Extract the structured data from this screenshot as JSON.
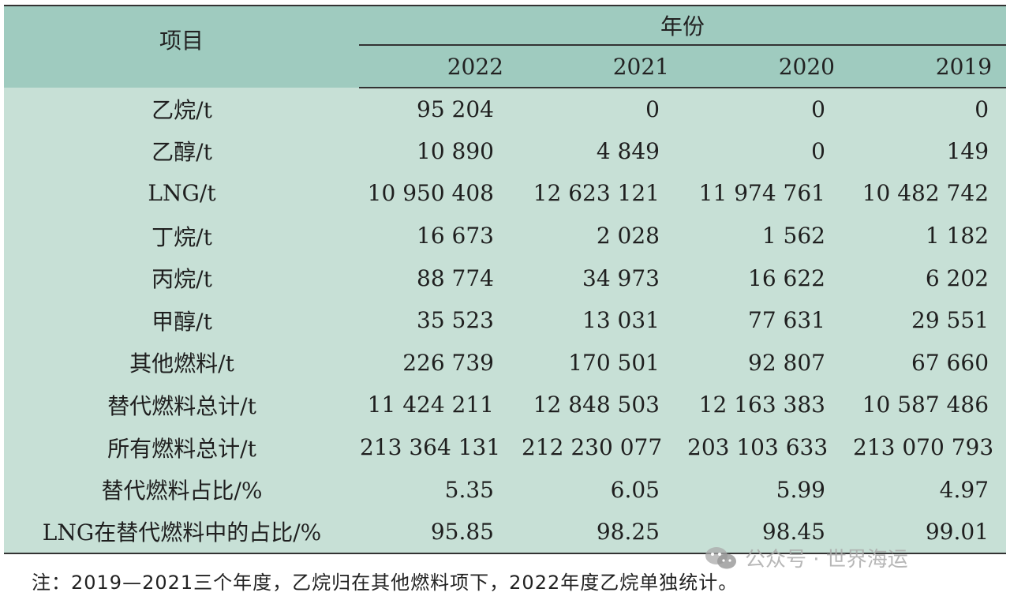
{
  "table": {
    "item_header": "项目",
    "year_group_header": "年份",
    "years": [
      "2022",
      "2021",
      "2020",
      "2019"
    ],
    "rows": [
      {
        "label": "乙烷/t",
        "values": [
          "95 204",
          "0",
          "0",
          "0"
        ]
      },
      {
        "label": "乙醇/t",
        "values": [
          "10 890",
          "4 849",
          "0",
          "149"
        ]
      },
      {
        "label": "LNG/t",
        "values": [
          "10 950 408",
          "12 623 121",
          "11 974 761",
          "10 482 742"
        ]
      },
      {
        "label": "丁烷/t",
        "values": [
          "16 673",
          "2 028",
          "1 562",
          "1 182"
        ]
      },
      {
        "label": "丙烷/t",
        "values": [
          "88 774",
          "34 973",
          "16 622",
          "6 202"
        ]
      },
      {
        "label": "甲醇/t",
        "values": [
          "35 523",
          "13 031",
          "77 631",
          "29 551"
        ]
      },
      {
        "label": "其他燃料/t",
        "values": [
          "226 739",
          "170 501",
          "92 807",
          "67 660"
        ]
      },
      {
        "label": "替代燃料总计/t",
        "values": [
          "11 424 211",
          "12 848 503",
          "12 163 383",
          "10 587 486"
        ]
      },
      {
        "label": "所有燃料总计/t",
        "values": [
          "213 364 131",
          "212 230 077",
          "203 103 633",
          "213 070 793"
        ]
      },
      {
        "label": "替代燃料占比/%",
        "values": [
          "5.35",
          "6.05",
          "5.99",
          "4.97"
        ]
      },
      {
        "label": "LNG在替代燃料中的占比/%",
        "values": [
          "95.85",
          "98.25",
          "98.45",
          "99.01"
        ]
      }
    ]
  },
  "note": "注：2019—2021三个年度，乙烷归在其他燃料项下，2022年度乙烷单独统计。",
  "watermark": {
    "text": "公众号 · 世界海运",
    "icon": "wechat-icon"
  },
  "colors": {
    "header_bg": "#9fcbbf",
    "body_bg": "#c7e0d6",
    "rule": "#333333"
  }
}
